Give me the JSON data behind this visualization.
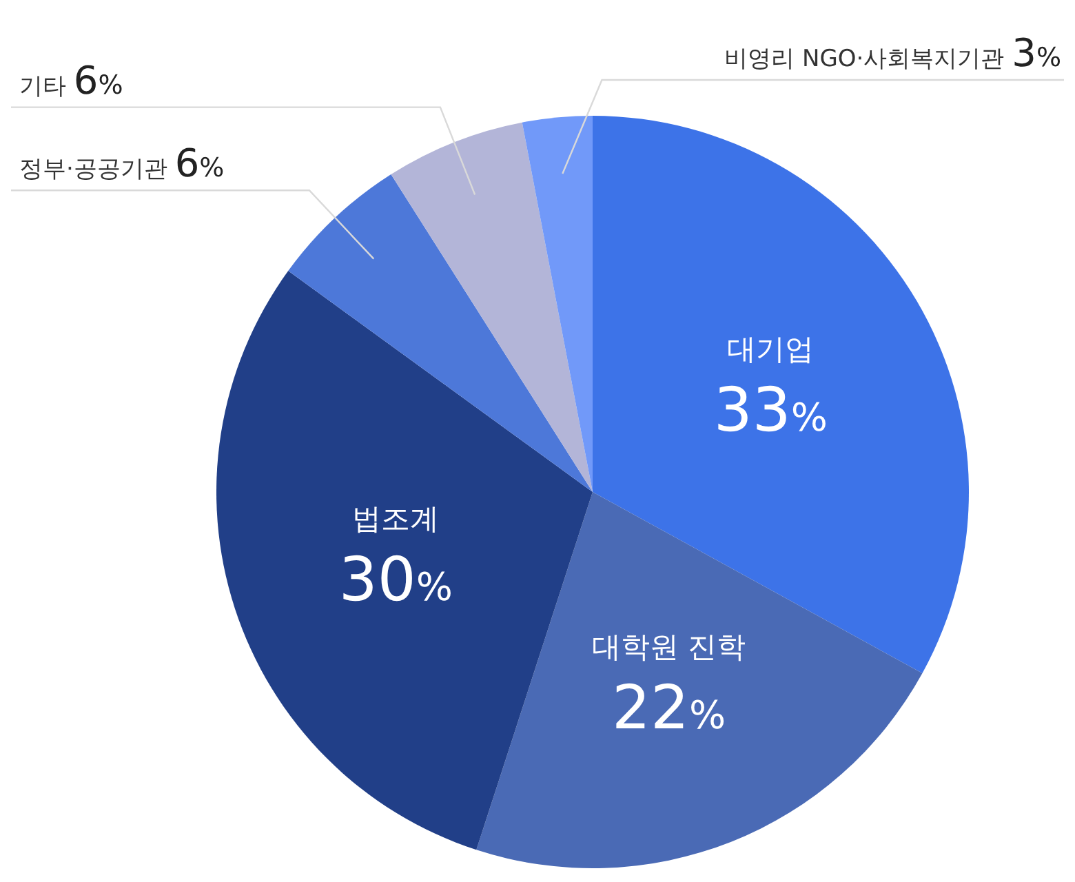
{
  "chart_data": {
    "type": "pie",
    "categories": [
      "대기업",
      "대학원 진학",
      "법조계",
      "정부·공공기관",
      "기타",
      "비영리 NGO·사회복지기관"
    ],
    "values": [
      33,
      22,
      30,
      6,
      6,
      3
    ],
    "value_labels": [
      "33%",
      "22%",
      "30%",
      "6%",
      "6%",
      "3%"
    ],
    "colors": [
      "#3d73e8",
      "#4a6ab5",
      "#213f88",
      "#4d78d9",
      "#b3b5d8",
      "#7199f9"
    ]
  }
}
